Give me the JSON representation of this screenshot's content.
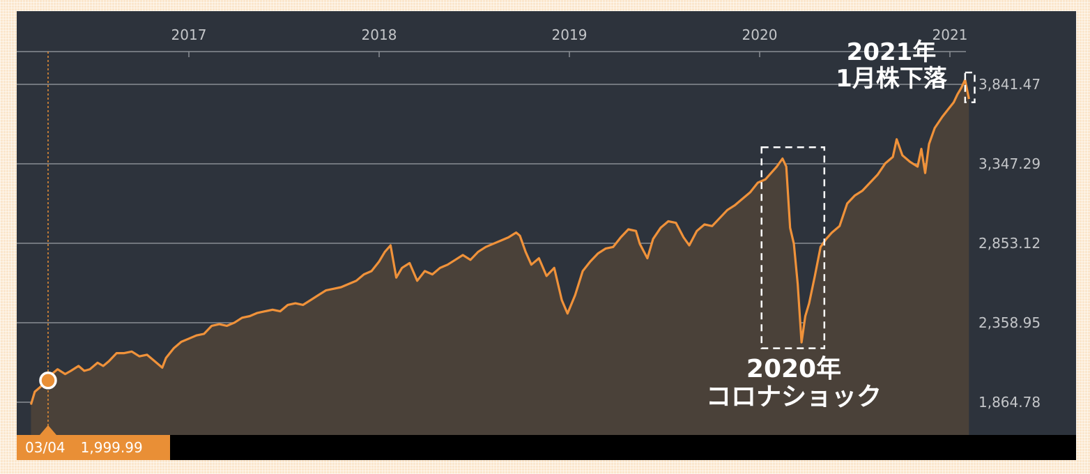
{
  "chart_data": {
    "type": "area",
    "x_ticks": [
      "2017",
      "2018",
      "2019",
      "2020",
      "2021"
    ],
    "y_ticks": [
      "1,864.78",
      "2,358.95",
      "2,853.12",
      "3,347.29",
      "3,841.47"
    ],
    "ylim": [
      1864.78,
      3841.47
    ],
    "series": [
      {
        "points": [
          [
            2016.17,
            1850
          ],
          [
            2016.19,
            1930
          ],
          [
            2016.22,
            1960
          ],
          [
            2016.25,
            2010
          ],
          [
            2016.28,
            2040
          ],
          [
            2016.31,
            2070
          ],
          [
            2016.35,
            2040
          ],
          [
            2016.38,
            2060
          ],
          [
            2016.42,
            2090
          ],
          [
            2016.45,
            2060
          ],
          [
            2016.48,
            2070
          ],
          [
            2016.52,
            2110
          ],
          [
            2016.55,
            2090
          ],
          [
            2016.58,
            2120
          ],
          [
            2016.62,
            2170
          ],
          [
            2016.66,
            2170
          ],
          [
            2016.7,
            2180
          ],
          [
            2016.74,
            2150
          ],
          [
            2016.78,
            2160
          ],
          [
            2016.82,
            2120
          ],
          [
            2016.86,
            2080
          ],
          [
            2016.88,
            2140
          ],
          [
            2016.92,
            2200
          ],
          [
            2016.96,
            2240
          ],
          [
            2017.0,
            2260
          ],
          [
            2017.04,
            2280
          ],
          [
            2017.08,
            2290
          ],
          [
            2017.12,
            2340
          ],
          [
            2017.16,
            2350
          ],
          [
            2017.2,
            2340
          ],
          [
            2017.24,
            2360
          ],
          [
            2017.28,
            2390
          ],
          [
            2017.32,
            2400
          ],
          [
            2017.36,
            2420
          ],
          [
            2017.4,
            2430
          ],
          [
            2017.44,
            2440
          ],
          [
            2017.48,
            2430
          ],
          [
            2017.52,
            2470
          ],
          [
            2017.56,
            2480
          ],
          [
            2017.6,
            2470
          ],
          [
            2017.64,
            2500
          ],
          [
            2017.68,
            2530
          ],
          [
            2017.72,
            2560
          ],
          [
            2017.76,
            2570
          ],
          [
            2017.8,
            2580
          ],
          [
            2017.84,
            2600
          ],
          [
            2017.88,
            2620
          ],
          [
            2017.92,
            2660
          ],
          [
            2017.96,
            2680
          ],
          [
            2018.0,
            2740
          ],
          [
            2018.03,
            2800
          ],
          [
            2018.06,
            2840
          ],
          [
            2018.09,
            2640
          ],
          [
            2018.12,
            2700
          ],
          [
            2018.16,
            2730
          ],
          [
            2018.2,
            2620
          ],
          [
            2018.24,
            2680
          ],
          [
            2018.28,
            2660
          ],
          [
            2018.32,
            2700
          ],
          [
            2018.36,
            2720
          ],
          [
            2018.4,
            2750
          ],
          [
            2018.44,
            2780
          ],
          [
            2018.48,
            2750
          ],
          [
            2018.52,
            2800
          ],
          [
            2018.56,
            2830
          ],
          [
            2018.6,
            2850
          ],
          [
            2018.64,
            2870
          ],
          [
            2018.68,
            2890
          ],
          [
            2018.72,
            2920
          ],
          [
            2018.74,
            2900
          ],
          [
            2018.77,
            2800
          ],
          [
            2018.8,
            2720
          ],
          [
            2018.84,
            2760
          ],
          [
            2018.88,
            2650
          ],
          [
            2018.92,
            2700
          ],
          [
            2018.96,
            2500
          ],
          [
            2018.99,
            2416
          ],
          [
            2019.03,
            2530
          ],
          [
            2019.07,
            2680
          ],
          [
            2019.11,
            2740
          ],
          [
            2019.15,
            2790
          ],
          [
            2019.19,
            2820
          ],
          [
            2019.23,
            2830
          ],
          [
            2019.27,
            2890
          ],
          [
            2019.31,
            2940
          ],
          [
            2019.35,
            2930
          ],
          [
            2019.37,
            2850
          ],
          [
            2019.41,
            2760
          ],
          [
            2019.44,
            2880
          ],
          [
            2019.48,
            2950
          ],
          [
            2019.52,
            2990
          ],
          [
            2019.56,
            2980
          ],
          [
            2019.6,
            2890
          ],
          [
            2019.63,
            2840
          ],
          [
            2019.67,
            2930
          ],
          [
            2019.71,
            2970
          ],
          [
            2019.75,
            2960
          ],
          [
            2019.79,
            3010
          ],
          [
            2019.83,
            3060
          ],
          [
            2019.87,
            3090
          ],
          [
            2019.91,
            3130
          ],
          [
            2019.95,
            3170
          ],
          [
            2019.99,
            3230
          ],
          [
            2020.03,
            3250
          ],
          [
            2020.06,
            3290
          ],
          [
            2020.09,
            3330
          ],
          [
            2020.12,
            3380
          ],
          [
            2020.14,
            3330
          ],
          [
            2020.16,
            2950
          ],
          [
            2020.18,
            2850
          ],
          [
            2020.2,
            2600
          ],
          [
            2020.22,
            2237
          ],
          [
            2020.24,
            2400
          ],
          [
            2020.26,
            2480
          ],
          [
            2020.29,
            2650
          ],
          [
            2020.32,
            2830
          ],
          [
            2020.35,
            2880
          ],
          [
            2020.38,
            2920
          ],
          [
            2020.42,
            2960
          ],
          [
            2020.46,
            3100
          ],
          [
            2020.5,
            3150
          ],
          [
            2020.54,
            3180
          ],
          [
            2020.58,
            3230
          ],
          [
            2020.62,
            3280
          ],
          [
            2020.66,
            3350
          ],
          [
            2020.7,
            3390
          ],
          [
            2020.72,
            3500
          ],
          [
            2020.75,
            3400
          ],
          [
            2020.79,
            3360
          ],
          [
            2020.83,
            3330
          ],
          [
            2020.85,
            3440
          ],
          [
            2020.87,
            3290
          ],
          [
            2020.89,
            3470
          ],
          [
            2020.92,
            3570
          ],
          [
            2020.96,
            3640
          ],
          [
            2021.0,
            3700
          ],
          [
            2021.02,
            3730
          ],
          [
            2021.04,
            3780
          ],
          [
            2021.06,
            3820
          ],
          [
            2021.08,
            3870
          ],
          [
            2021.1,
            3750
          ]
        ]
      }
    ],
    "colors": {
      "line": "#f0923a",
      "fill": "#4a4139",
      "plot_bg": "#2d333c",
      "grid": "#8a8e94",
      "text": "#c4c6c9",
      "accent": "#e98f36"
    },
    "marker": {
      "x": 2016.26,
      "y": 1999.99
    },
    "annotations": [
      {
        "lines": [
          "2021年",
          "1月株下落"
        ]
      },
      {
        "lines": [
          "2020年",
          "コロナショック"
        ]
      }
    ],
    "highlight_boxes": [
      {
        "x_range": [
          2020.01,
          2020.34
        ],
        "y_range": [
          2200,
          3450
        ]
      },
      {
        "x_range": [
          2021.08,
          2021.13
        ],
        "y_range": [
          3730,
          3915
        ]
      }
    ]
  },
  "readout": {
    "date": "03/04",
    "value": "1,999.99"
  }
}
